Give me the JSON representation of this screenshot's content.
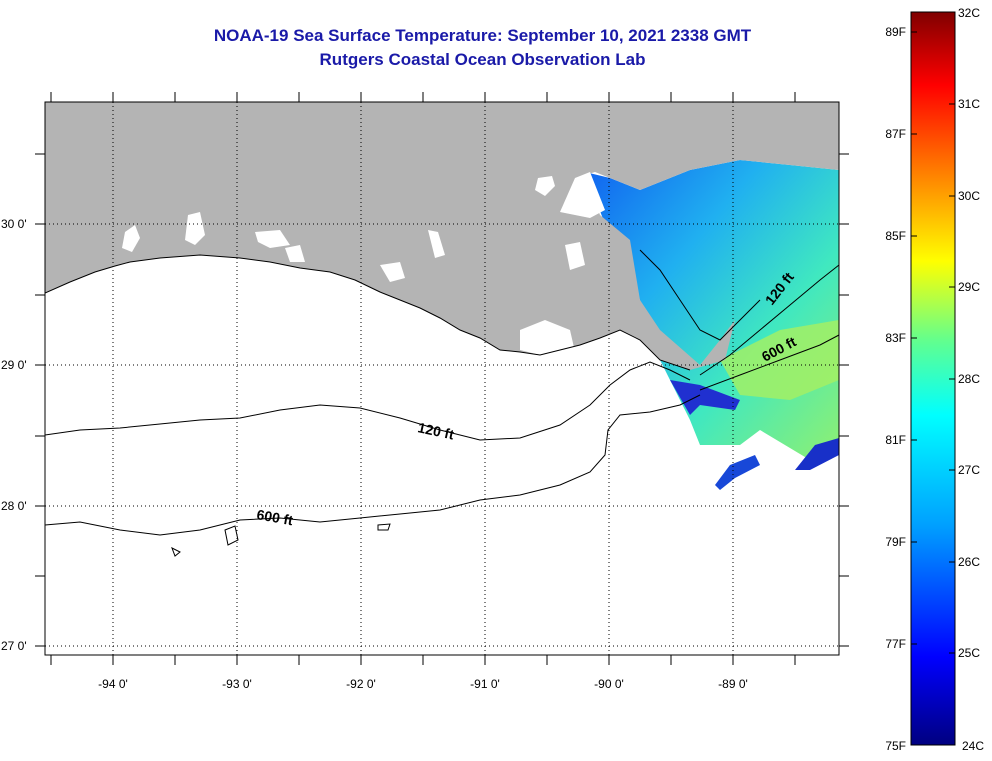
{
  "header": {
    "title": "NOAA-19 Sea Surface Temperature:  September 10, 2021 2338 GMT",
    "subtitle": "Rutgers Coastal Ocean Observation Lab"
  },
  "map": {
    "longitude_labels": [
      "-94 0'",
      "-93 0'",
      "-92 0'",
      "-91 0'",
      "-90 0'",
      "-89 0'"
    ],
    "latitude_labels": [
      "30 0'",
      "29 0'",
      "28 0'",
      "27 0'"
    ],
    "isobath_labels": [
      "120 ft",
      "120 ft",
      "600 ft",
      "600 ft"
    ],
    "colors": {
      "land": "#b4b4b4",
      "cloud": "#ffffff",
      "frame": "#000000"
    }
  },
  "colorbar": {
    "fahrenheit_labels": [
      "89F",
      "87F",
      "85F",
      "83F",
      "81F",
      "79F",
      "77F",
      "75F"
    ],
    "celsius_labels": [
      "32C",
      "31C",
      "30C",
      "29C",
      "28C",
      "27C",
      "26C",
      "25C",
      "24C"
    ],
    "gradient": [
      "#000080",
      "#0000ff",
      "#00a0ff",
      "#00ffff",
      "#60ff90",
      "#ffff00",
      "#ff8000",
      "#ff0000",
      "#800000"
    ]
  }
}
